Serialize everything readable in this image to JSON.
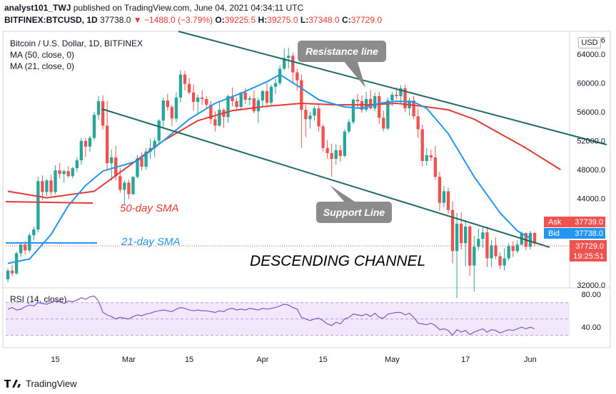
{
  "header": {
    "user": "analyst101_TWJ",
    "published": "published on TradingView.com, June 04, 2021 04:34:11 UTC",
    "symbol": "BITFINEX:BTCUSD, 1D",
    "last": "37738.0",
    "change": "−1488.0 (−3.79%)",
    "o_label": "O:",
    "o": "39225.5",
    "h_label": "H:",
    "h": "39275.0",
    "l_label": "L:",
    "l": "37348.0",
    "c_label": "C:",
    "c": "37729.0"
  },
  "colors": {
    "up": "#26a69a",
    "down": "#ef5350",
    "ma50": "#e53935",
    "ma21": "#2196f3",
    "trend": "#1e6b63",
    "rsi": "#7e57c2"
  },
  "chart_data": {
    "type": "candlestick",
    "title": "Bitcoin / U.S. Dollar, 1D, BITFINEX",
    "legend": [
      "MA (50, close, 0)",
      "MA (21, close, 0)"
    ],
    "currency": "USD",
    "y_ticks": [
      "64000.0",
      "60000.0",
      "56000.0",
      "52000.0",
      "48000.0",
      "44000.0",
      "32000.0"
    ],
    "y_tick_values": [
      64000,
      60000,
      56000,
      52000,
      48000,
      44000,
      32000
    ],
    "y_top_label_partial": "6",
    "ylim": [
      32000,
      66000
    ],
    "x_ticks": [
      "15",
      "Mar",
      "15",
      "Apr",
      "15",
      "May",
      "17",
      "Jun"
    ],
    "candles": [
      [
        32800,
        34300,
        32400,
        34000
      ],
      [
        34000,
        34800,
        33200,
        33600
      ],
      [
        33600,
        36600,
        33400,
        36400
      ],
      [
        36400,
        37800,
        35900,
        37600
      ],
      [
        37600,
        38100,
        36200,
        36800
      ],
      [
        36800,
        39200,
        36500,
        38900
      ],
      [
        38900,
        40100,
        38200,
        39700
      ],
      [
        39700,
        47000,
        39300,
        46400
      ],
      [
        46400,
        47200,
        43800,
        44900
      ],
      [
        44900,
        46700,
        44300,
        46500
      ],
      [
        46500,
        47300,
        44400,
        44900
      ],
      [
        44900,
        48600,
        44600,
        47900
      ],
      [
        47900,
        48900,
        46800,
        47400
      ],
      [
        47400,
        48000,
        46200,
        47800
      ],
      [
        47800,
        48500,
        46900,
        47100
      ],
      [
        47100,
        48400,
        46800,
        48200
      ],
      [
        48200,
        49700,
        47700,
        49300
      ],
      [
        49300,
        52400,
        48700,
        52000
      ],
      [
        52000,
        52400,
        49800,
        51200
      ],
      [
        51200,
        52700,
        50500,
        52400
      ],
      [
        52400,
        56000,
        52100,
        55600
      ],
      [
        55600,
        58200,
        54900,
        57500
      ],
      [
        57500,
        58300,
        53600,
        54100
      ],
      [
        54100,
        57500,
        48000,
        48900
      ],
      [
        48900,
        50800,
        46500,
        49700
      ],
      [
        49700,
        51300,
        46500,
        47100
      ],
      [
        47100,
        48200,
        44800,
        45200
      ],
      [
        45200,
        46500,
        43100,
        46200
      ],
      [
        46200,
        46600,
        43900,
        44600
      ],
      [
        44600,
        47100,
        44500,
        47000
      ],
      [
        47000,
        50000,
        46800,
        49600
      ],
      [
        49600,
        50400,
        47900,
        48400
      ],
      [
        48400,
        51000,
        48000,
        50500
      ],
      [
        50500,
        52300,
        49500,
        51000
      ],
      [
        51000,
        52400,
        49700,
        52000
      ],
      [
        52000,
        55000,
        51600,
        54800
      ],
      [
        54800,
        58000,
        53700,
        57600
      ],
      [
        57600,
        58500,
        56200,
        56700
      ],
      [
        56700,
        57000,
        54000,
        55100
      ],
      [
        55100,
        58700,
        54600,
        58000
      ],
      [
        58000,
        61800,
        57300,
        61200
      ],
      [
        61200,
        61700,
        59000,
        59900
      ],
      [
        59900,
        60700,
        58400,
        58700
      ],
      [
        58700,
        59800,
        56200,
        57400
      ],
      [
        57400,
        58400,
        55800,
        58000
      ],
      [
        58000,
        59000,
        57000,
        57800
      ],
      [
        57800,
        58200,
        56400,
        57000
      ],
      [
        57000,
        57500,
        54300,
        55000
      ],
      [
        55000,
        56100,
        53300,
        54100
      ],
      [
        54100,
        57400,
        54000,
        56300
      ],
      [
        56300,
        56500,
        53800,
        55300
      ],
      [
        55300,
        58400,
        54500,
        58200
      ],
      [
        58200,
        59400,
        56800,
        57500
      ],
      [
        57500,
        58000,
        56100,
        56700
      ],
      [
        56700,
        58800,
        56300,
        58700
      ],
      [
        58700,
        59300,
        57100,
        57700
      ],
      [
        57700,
        58200,
        56900,
        57900
      ],
      [
        57900,
        59000,
        55800,
        56100
      ],
      [
        56100,
        58000,
        54500,
        57600
      ],
      [
        57600,
        59100,
        56800,
        58900
      ],
      [
        58900,
        60000,
        57000,
        57300
      ],
      [
        57300,
        59800,
        57000,
        59500
      ],
      [
        59500,
        60600,
        58500,
        60000
      ],
      [
        60000,
        62500,
        59700,
        62000
      ],
      [
        62000,
        64800,
        61800,
        63500
      ],
      [
        63500,
        64900,
        62000,
        63800
      ],
      [
        63800,
        64200,
        60000,
        61500
      ],
      [
        61500,
        62000,
        59000,
        60400
      ],
      [
        60400,
        61200,
        51000,
        56300
      ],
      [
        56300,
        57000,
        52500,
        55000
      ],
      [
        55000,
        56000,
        53700,
        55500
      ],
      [
        55500,
        56800,
        54800,
        56500
      ],
      [
        56500,
        57000,
        53300,
        54000
      ],
      [
        54000,
        54300,
        50500,
        51000
      ],
      [
        51000,
        52100,
        49500,
        50300
      ],
      [
        50300,
        51600,
        47000,
        49500
      ],
      [
        49500,
        51500,
        48700,
        50700
      ],
      [
        50700,
        51400,
        49100,
        49900
      ],
      [
        49900,
        53600,
        49700,
        53300
      ],
      [
        53300,
        55000,
        53000,
        54600
      ],
      [
        54600,
        57900,
        54300,
        57700
      ],
      [
        57700,
        58500,
        56500,
        57500
      ],
      [
        57500,
        58300,
        55900,
        56300
      ],
      [
        56300,
        58800,
        56000,
        57800
      ],
      [
        57800,
        59000,
        56400,
        56500
      ],
      [
        56500,
        58700,
        56100,
        58200
      ],
      [
        58200,
        58800,
        54300,
        55200
      ],
      [
        55200,
        56200,
        53300,
        53700
      ],
      [
        53700,
        58000,
        53500,
        57600
      ],
      [
        57600,
        58800,
        56800,
        58400
      ],
      [
        58400,
        59400,
        57800,
        58200
      ],
      [
        58200,
        59700,
        57200,
        59300
      ],
      [
        59300,
        59800,
        56000,
        56500
      ],
      [
        56500,
        58000,
        55500,
        57600
      ],
      [
        57600,
        58200,
        55000,
        55400
      ],
      [
        55400,
        56500,
        52400,
        53600
      ],
      [
        53600,
        54200,
        48500,
        49200
      ],
      [
        49200,
        51000,
        48600,
        50000
      ],
      [
        50000,
        50800,
        49200,
        49700
      ],
      [
        49700,
        51300,
        46600,
        47000
      ],
      [
        47000,
        47700,
        42300,
        43400
      ],
      [
        43400,
        45700,
        42800,
        45000
      ],
      [
        45000,
        45500,
        41900,
        42400
      ],
      [
        42400,
        43600,
        35000,
        36700
      ],
      [
        36700,
        42000,
        30200,
        40500
      ],
      [
        40500,
        42100,
        36900,
        37800
      ],
      [
        37800,
        41000,
        34600,
        40100
      ],
      [
        40100,
        40300,
        33300,
        34700
      ],
      [
        34700,
        38800,
        31100,
        37300
      ],
      [
        37300,
        39800,
        36800,
        38400
      ],
      [
        38400,
        40000,
        37100,
        39300
      ],
      [
        39300,
        40100,
        34500,
        35700
      ],
      [
        35700,
        38200,
        34500,
        37500
      ],
      [
        37500,
        38600,
        35600,
        36000
      ],
      [
        36000,
        36500,
        34200,
        34700
      ],
      [
        34700,
        37100,
        34000,
        35700
      ],
      [
        35700,
        37800,
        35400,
        37400
      ],
      [
        37400,
        38100,
        35900,
        36700
      ],
      [
        36700,
        38200,
        36400,
        37600
      ],
      [
        37600,
        39400,
        37500,
        39200
      ],
      [
        39200,
        39300,
        36800,
        37300
      ],
      [
        37300,
        39500,
        36900,
        39225
      ],
      [
        39225,
        39275,
        37348,
        37729
      ]
    ],
    "ma50_line": [
      [
        0,
        45000
      ],
      [
        9,
        44100
      ],
      [
        20,
        45000
      ],
      [
        28,
        48500
      ],
      [
        36,
        52000
      ],
      [
        44,
        54800
      ],
      [
        52,
        56200
      ],
      [
        60,
        56800
      ],
      [
        64,
        57000
      ],
      [
        68,
        57200
      ],
      [
        76,
        57000
      ],
      [
        84,
        57000
      ],
      [
        90,
        57200
      ],
      [
        96,
        56800
      ],
      [
        102,
        56300
      ],
      [
        108,
        55000
      ],
      [
        114,
        53000
      ],
      [
        120,
        51000
      ],
      [
        128,
        48000
      ]
    ],
    "ma21_line": [
      [
        0,
        35000
      ],
      [
        5,
        35600
      ],
      [
        10,
        39000
      ],
      [
        14,
        43000
      ],
      [
        18,
        45800
      ],
      [
        22,
        47800
      ],
      [
        30,
        49200
      ],
      [
        36,
        52000
      ],
      [
        42,
        55000
      ],
      [
        48,
        57200
      ],
      [
        54,
        58600
      ],
      [
        60,
        60200
      ],
      [
        63,
        61200
      ],
      [
        68,
        59300
      ],
      [
        72,
        57700
      ],
      [
        78,
        56700
      ],
      [
        82,
        56500
      ],
      [
        86,
        57200
      ],
      [
        90,
        57500
      ],
      [
        94,
        57400
      ],
      [
        97,
        56500
      ],
      [
        102,
        53000
      ],
      [
        108,
        47000
      ],
      [
        114,
        42000
      ],
      [
        118,
        39500
      ],
      [
        121,
        38500
      ]
    ],
    "annotations": [
      {
        "text": "Resistance line"
      },
      {
        "text": "Support Line"
      },
      {
        "text": "50-day SMA"
      },
      {
        "text": "21-day SMA"
      },
      {
        "text": "DESCENDING CHANNEL"
      }
    ],
    "price_labels": {
      "ask_label": "Ask",
      "ask": "37739.0",
      "bid_label": "Bid",
      "bid": "37738.0",
      "last": "37729.0",
      "countdown": "19:25:51"
    },
    "rsi": {
      "label": "RSI (14, close)",
      "ticks": [
        "80.00",
        "40.00"
      ],
      "band": [
        30,
        70
      ],
      "values": [
        62,
        64,
        61,
        62,
        65,
        67,
        66,
        70,
        69,
        68,
        70,
        72,
        71,
        69,
        72,
        71,
        73,
        76,
        74,
        77,
        78,
        72,
        58,
        55,
        53,
        50,
        52,
        51,
        50,
        53,
        55,
        54,
        56,
        57,
        59,
        60,
        61,
        60,
        59,
        62,
        64,
        63,
        61,
        60,
        61,
        60,
        60,
        59,
        58,
        60,
        59,
        62,
        63,
        61,
        62,
        61,
        63,
        62,
        61,
        63,
        62,
        63,
        64,
        66,
        68,
        67,
        64,
        62,
        52,
        50,
        48,
        50,
        51,
        48,
        44,
        42,
        46,
        44,
        50,
        52,
        56,
        55,
        54,
        56,
        53,
        57,
        52,
        51,
        56,
        57,
        58,
        58,
        55,
        57,
        52,
        45,
        44,
        43,
        45,
        42,
        37,
        38,
        36,
        30,
        37,
        34,
        36,
        31,
        34,
        36,
        38,
        34,
        37,
        36,
        33,
        35,
        37,
        36,
        38,
        40,
        38,
        40,
        38
      ]
    }
  },
  "footer": {
    "brand": "TradingView"
  }
}
